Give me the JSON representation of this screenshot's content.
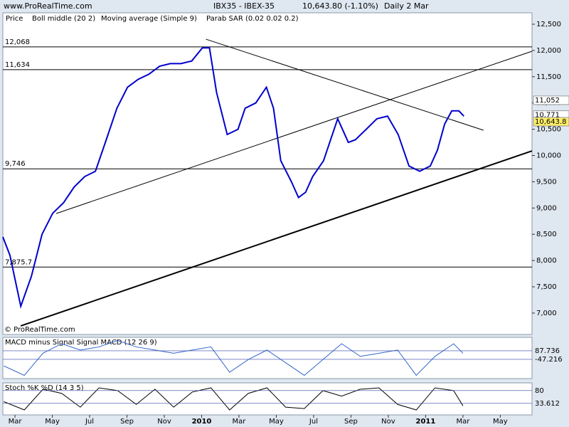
{
  "chart_data": {
    "type": "line",
    "site": "www.ProRealTime.com",
    "symbol": "IBX35 - IBEX-35",
    "quote": "10,643.80 (-1.10%)",
    "period": "Daily  2 Mar",
    "legend_price": "Price",
    "legend_boll": "Boll middle (20 2)",
    "legend_ma": "Moving average (Simple 9)",
    "legend_sar": "Parab SAR (0.02 0.02 0.2)",
    "copyright": "© ProRealTime.com",
    "xlim": [
      -0.65,
      27.7
    ],
    "xticks": [
      {
        "value": 0,
        "label": "Mar"
      },
      {
        "value": 2,
        "label": "May"
      },
      {
        "value": 4,
        "label": "Jul"
      },
      {
        "value": 6,
        "label": "Sep"
      },
      {
        "value": 8,
        "label": "Nov"
      },
      {
        "value": 10,
        "label": "2010"
      },
      {
        "value": 12,
        "label": "Mar"
      },
      {
        "value": 14,
        "label": "May"
      },
      {
        "value": 16,
        "label": "Jul"
      },
      {
        "value": 18,
        "label": "Sep"
      },
      {
        "value": 20,
        "label": "Nov"
      },
      {
        "value": 22,
        "label": "2011"
      },
      {
        "value": 24,
        "label": "Mar"
      },
      {
        "value": 26,
        "label": "May"
      }
    ],
    "ylim": [
      6592,
      12717
    ],
    "yticks": [
      {
        "value": 7000,
        "label": "7,000"
      },
      {
        "value": 7500,
        "label": "7,500"
      },
      {
        "value": 8000,
        "label": "8,000"
      },
      {
        "value": 8500,
        "label": "8,500"
      },
      {
        "value": 9000,
        "label": "9,000"
      },
      {
        "value": 9500,
        "label": "9,500"
      },
      {
        "value": 10000,
        "label": "10,000"
      },
      {
        "value": 10500,
        "label": "10,500"
      },
      {
        "value": 11000,
        "label": "11,000"
      },
      {
        "value": 11500,
        "label": "11,500"
      },
      {
        "value": 12000,
        "label": "12,000"
      },
      {
        "value": 12500,
        "label": "12,500"
      }
    ],
    "series": [
      {
        "name": "Moving average (Simple 9)",
        "color": "#0000cc",
        "x": [
          -0.65,
          -0.27,
          0.31,
          0.88,
          1.45,
          2.02,
          2.6,
          3.17,
          3.74,
          4.31,
          4.89,
          5.46,
          6.03,
          6.6,
          7.18,
          7.75,
          8.32,
          8.89,
          9.47,
          10.04,
          10.42,
          10.8,
          11.37,
          11.95,
          12.33,
          12.9,
          13.47,
          13.85,
          14.24,
          14.81,
          15.19,
          15.57,
          15.95,
          16.53,
          16.91,
          17.29,
          17.86,
          18.24,
          18.82,
          19.39,
          19.96,
          20.53,
          21.11,
          21.68,
          22.25,
          22.63,
          23.02,
          23.4,
          23.78,
          24.05
        ],
        "values": [
          8450,
          8100,
          7130,
          7700,
          8500,
          8900,
          9100,
          9400,
          9600,
          9700,
          10300,
          10900,
          11300,
          11450,
          11550,
          11700,
          11750,
          11750,
          11800,
          12050,
          12050,
          11200,
          10400,
          10500,
          10900,
          11000,
          11300,
          10900,
          9900,
          9500,
          9200,
          9300,
          9600,
          9900,
          10300,
          10700,
          10250,
          10300,
          10500,
          10700,
          10750,
          10400,
          9800,
          9700,
          9800,
          10100,
          10600,
          10850,
          10850,
          10750
        ]
      }
    ],
    "levels": [
      {
        "value": 12068,
        "label": "12,068"
      },
      {
        "value": 11634,
        "label": "11,634"
      },
      {
        "value": 9746,
        "label": "9,746"
      },
      {
        "value": 7875.7,
        "label": "7,875.7"
      }
    ],
    "trendlines": [
      {
        "x": [
          0.31,
          27.7
        ],
        "y": [
          6755,
          10088
        ]
      },
      {
        "x": [
          2.21,
          27.7
        ],
        "y": [
          8896,
          11985
        ]
      },
      {
        "x": [
          10.23,
          25.1
        ],
        "y": [
          12215,
          10481
        ]
      }
    ],
    "price_labels": [
      {
        "value": 11052,
        "label": "11,052",
        "color": "#cc3333"
      },
      {
        "value": 10771,
        "label": "10,771",
        "color": "#000000"
      },
      {
        "value": 10643.8,
        "label": "10,643.8",
        "color": "#000000"
      }
    ],
    "macd": {
      "title": "MACD minus Signal Signal MACD (12 26 9)",
      "ylim": [
        -351,
        301
      ],
      "color": "#3366cc",
      "x": [
        -0.6,
        0.5,
        1.5,
        2.5,
        3.5,
        4.5,
        5.5,
        6.5,
        7.5,
        8.5,
        9.5,
        10.5,
        11.5,
        12.5,
        13.5,
        14.5,
        15.5,
        16.5,
        17.5,
        18.5,
        19.5,
        20.5,
        21.5,
        22.5,
        23.5,
        24.0
      ],
      "values": [
        -150,
        -300,
        50,
        200,
        100,
        150,
        250,
        150,
        100,
        50,
        100,
        150,
        -250,
        -50,
        100,
        -100,
        -300,
        -50,
        200,
        0,
        50,
        100,
        -300,
        0,
        200,
        50
      ],
      "labels": [
        {
          "value": 87.736,
          "label": "87.736"
        },
        {
          "value": -47.216,
          "label": "-47.216"
        }
      ]
    },
    "stoch": {
      "title": "Stoch %K %D (14 3 5)",
      "ylim": [
        -8,
        108
      ],
      "color": "#000000",
      "x": [
        -0.6,
        0.5,
        1.5,
        2.5,
        3.5,
        4.5,
        5.5,
        6.5,
        7.5,
        8.5,
        9.5,
        10.5,
        11.5,
        12.5,
        13.5,
        14.5,
        15.5,
        16.5,
        17.5,
        18.5,
        19.5,
        20.5,
        21.5,
        22.5,
        23.5,
        24.0
      ],
      "values": [
        40,
        10,
        85,
        70,
        20,
        90,
        80,
        30,
        85,
        20,
        75,
        90,
        10,
        70,
        90,
        20,
        15,
        80,
        60,
        85,
        90,
        30,
        10,
        90,
        80,
        25
      ],
      "labels": [
        {
          "value": 80,
          "label": "80"
        },
        {
          "value": 33.612,
          "label": "33.612"
        }
      ]
    }
  }
}
